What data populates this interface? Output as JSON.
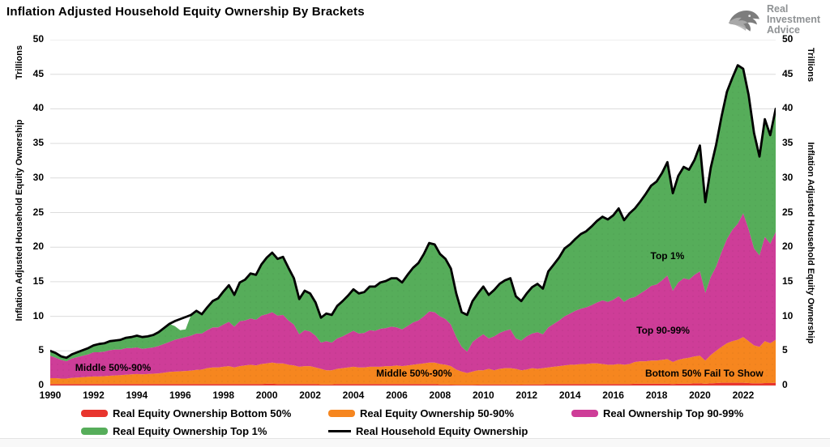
{
  "header": {
    "title": "Inflation Adjusted Household Equity Ownership By Brackets",
    "logo": {
      "lines": [
        "Real",
        "Investment",
        "Advice"
      ]
    }
  },
  "chart_data": {
    "type": "area",
    "stacked": true,
    "title": "Inflation Adjusted Household Equity Ownership By Brackets",
    "ylabel": "Inflation Adjusted Household Equity Ownership",
    "ylabel_units": "Trillions",
    "xlim": [
      1990,
      2023.5
    ],
    "ylim": [
      0,
      50
    ],
    "yticks": [
      0,
      5,
      10,
      15,
      20,
      25,
      30,
      35,
      40,
      45,
      50
    ],
    "xticks": [
      1990,
      1992,
      1994,
      1996,
      1998,
      2000,
      2002,
      2004,
      2006,
      2008,
      2010,
      2012,
      2014,
      2016,
      2018,
      2020,
      2022
    ],
    "grid": "horizontal",
    "legend_position": "bottom",
    "x_start": 1990,
    "x_step": 0.25,
    "series": [
      {
        "name": "Real Equity Ownership Bottom 50%",
        "type": "area",
        "color": "#E8352E",
        "values": [
          0.2,
          0.2,
          0.2,
          0.2,
          0.2,
          0.2,
          0.2,
          0.2,
          0.2,
          0.2,
          0.2,
          0.2,
          0.2,
          0.2,
          0.2,
          0.2,
          0.2,
          0.2,
          0.2,
          0.2,
          0.2,
          0.2,
          0.2,
          0.2,
          0.2,
          0.2,
          0.2,
          0.2,
          0.2,
          0.2,
          0.2,
          0.2,
          0.2,
          0.2,
          0.2,
          0.2,
          0.2,
          0.2,
          0.2,
          0.2,
          0.25,
          0.25,
          0.2,
          0.2,
          0.2,
          0.2,
          0.2,
          0.2,
          0.2,
          0.2,
          0.15,
          0.15,
          0.15,
          0.2,
          0.2,
          0.2,
          0.2,
          0.2,
          0.2,
          0.2,
          0.2,
          0.2,
          0.2,
          0.2,
          0.2,
          0.2,
          0.2,
          0.2,
          0.2,
          0.2,
          0.2,
          0.2,
          0.15,
          0.15,
          0.12,
          0.1,
          0.1,
          0.1,
          0.1,
          0.12,
          0.15,
          0.15,
          0.15,
          0.15,
          0.15,
          0.15,
          0.15,
          0.12,
          0.15,
          0.15,
          0.15,
          0.15,
          0.2,
          0.2,
          0.2,
          0.2,
          0.2,
          0.2,
          0.2,
          0.2,
          0.2,
          0.2,
          0.2,
          0.2,
          0.2,
          0.2,
          0.2,
          0.2,
          0.25,
          0.25,
          0.25,
          0.25,
          0.25,
          0.25,
          0.25,
          0.2,
          0.25,
          0.25,
          0.25,
          0.3,
          0.3,
          0.25,
          0.3,
          0.35,
          0.4,
          0.4,
          0.4,
          0.4,
          0.4,
          0.35,
          0.3,
          0.3,
          0.35,
          0.35,
          0.4
        ]
      },
      {
        "name": "Real Equity Ownership 50-90%",
        "type": "area",
        "color": "#F6861F",
        "values": [
          0.85,
          0.85,
          0.8,
          0.8,
          0.9,
          0.95,
          1.0,
          1.05,
          1.1,
          1.1,
          1.15,
          1.2,
          1.25,
          1.3,
          1.35,
          1.4,
          1.45,
          1.4,
          1.45,
          1.5,
          1.55,
          1.65,
          1.75,
          1.8,
          1.85,
          1.9,
          1.95,
          2.05,
          2.1,
          2.3,
          2.4,
          2.4,
          2.5,
          2.6,
          2.4,
          2.6,
          2.7,
          2.8,
          2.7,
          2.9,
          2.95,
          3.05,
          3.0,
          3.0,
          2.8,
          2.7,
          2.5,
          2.6,
          2.6,
          2.4,
          2.25,
          2.05,
          2.05,
          2.2,
          2.3,
          2.4,
          2.5,
          2.4,
          2.4,
          2.5,
          2.5,
          2.5,
          2.6,
          2.6,
          2.7,
          2.6,
          2.7,
          2.8,
          2.9,
          3.0,
          3.1,
          3.1,
          2.95,
          2.85,
          2.68,
          2.2,
          1.9,
          1.7,
          1.9,
          2.08,
          2.05,
          2.25,
          2.05,
          2.25,
          2.35,
          2.35,
          2.25,
          2.08,
          2.15,
          2.35,
          2.25,
          2.35,
          2.4,
          2.5,
          2.6,
          2.7,
          2.8,
          2.8,
          2.9,
          2.9,
          3.0,
          3.0,
          2.9,
          2.8,
          2.8,
          2.9,
          2.8,
          2.9,
          3.15,
          3.25,
          3.25,
          3.35,
          3.35,
          3.45,
          3.55,
          3.2,
          3.45,
          3.65,
          3.75,
          3.9,
          4.0,
          3.35,
          4.1,
          4.65,
          5.2,
          5.7,
          6.0,
          6.2,
          6.6,
          6.05,
          5.5,
          5.3,
          6.05,
          5.75,
          6.2
        ]
      },
      {
        "name": "Real Ownership Top 90-99%",
        "type": "area",
        "color": "#CE3D98",
        "values": [
          3.25,
          2.95,
          2.7,
          2.5,
          2.8,
          2.95,
          3.1,
          3.25,
          3.5,
          3.5,
          3.55,
          3.7,
          3.75,
          3.7,
          3.85,
          3.8,
          3.85,
          3.7,
          3.75,
          3.8,
          3.95,
          4.15,
          4.35,
          4.6,
          4.75,
          4.9,
          5.05,
          5.25,
          5.2,
          5.5,
          5.8,
          5.8,
          6.1,
          6.4,
          5.9,
          6.5,
          6.5,
          6.7,
          6.6,
          7.0,
          7.1,
          7.3,
          6.9,
          7.0,
          6.4,
          5.9,
          4.7,
          5.2,
          5.0,
          4.6,
          3.8,
          4.2,
          4.0,
          4.4,
          4.6,
          4.9,
          5.2,
          4.9,
          5.0,
          5.3,
          5.2,
          5.5,
          5.5,
          5.7,
          5.5,
          5.3,
          5.7,
          6.1,
          6.3,
          6.8,
          7.4,
          7.3,
          6.9,
          6.6,
          6.0,
          4.7,
          3.6,
          3.1,
          4.3,
          4.7,
          5.2,
          4.4,
          4.9,
          5.2,
          5.4,
          5.6,
          4.4,
          4.3,
          4.8,
          5.0,
          5.3,
          4.9,
          5.8,
          6.2,
          6.6,
          7.1,
          7.4,
          7.8,
          8.0,
          8.2,
          8.4,
          8.8,
          9.2,
          9.1,
          9.4,
          9.8,
          9.1,
          9.5,
          9.4,
          9.8,
          10.3,
          10.8,
          11.0,
          11.5,
          12.1,
          10.3,
          11.2,
          11.6,
          11.3,
          11.8,
          12.2,
          9.8,
          11.3,
          12.2,
          13.7,
          15.1,
          16.1,
          16.8,
          17.9,
          16.2,
          14.0,
          13.2,
          15.1,
          14.4,
          15.6
        ]
      },
      {
        "name": "Real Equity Ownership Top 1%",
        "type": "area",
        "color": "#56AD5A",
        "values": [
          0.7,
          0.7,
          0.5,
          0.5,
          0.6,
          0.7,
          0.8,
          0.9,
          1.0,
          1.2,
          1.2,
          1.3,
          1.3,
          1.4,
          1.5,
          1.6,
          1.7,
          1.7,
          1.7,
          1.8,
          2.0,
          2.3,
          2.6,
          2.0,
          1.2,
          1.1,
          3.0,
          3.3,
          2.8,
          3.3,
          3.8,
          4.2,
          4.8,
          5.3,
          4.6,
          5.6,
          5.9,
          6.5,
          6.5,
          7.4,
          8.2,
          8.6,
          8.2,
          8.4,
          7.6,
          6.7,
          5.1,
          5.7,
          5.5,
          4.8,
          3.6,
          4.0,
          4.0,
          4.7,
          5.1,
          5.5,
          6.0,
          5.8,
          5.9,
          6.3,
          6.4,
          6.7,
          6.8,
          7.0,
          7.1,
          6.8,
          7.4,
          7.9,
          8.3,
          9.0,
          9.9,
          9.8,
          9.0,
          8.7,
          8.1,
          6.3,
          5.0,
          5.3,
          5.9,
          6.4,
          6.9,
          6.3,
          6.7,
          7.1,
          7.3,
          7.4,
          6.1,
          5.7,
          6.2,
          6.7,
          7.0,
          6.6,
          8.1,
          8.6,
          9.1,
          9.8,
          10.0,
          10.4,
          10.8,
          11.0,
          11.4,
          11.8,
          12.1,
          11.9,
          12.2,
          12.7,
          11.8,
          12.3,
          12.8,
          13.3,
          13.9,
          14.5,
          14.9,
          15.5,
          16.4,
          14.1,
          15.4,
          16.1,
          15.9,
          16.6,
          18.2,
          13.1,
          15.8,
          17.6,
          19.6,
          21.3,
          22.0,
          22.9,
          20.9,
          19.4,
          16.7,
          14.3,
          17.0,
          15.7,
          17.8
        ]
      },
      {
        "name": "Real Household Equity Ownership",
        "type": "line",
        "color": "#000000",
        "values": [
          5.0,
          4.7,
          4.2,
          4.0,
          4.5,
          4.8,
          5.1,
          5.4,
          5.8,
          6.0,
          6.1,
          6.4,
          6.5,
          6.6,
          6.9,
          7.0,
          7.2,
          7.0,
          7.1,
          7.3,
          7.7,
          8.3,
          8.9,
          9.3,
          9.6,
          9.9,
          10.2,
          10.8,
          10.3,
          11.3,
          12.2,
          12.6,
          13.6,
          14.5,
          13.1,
          14.9,
          15.3,
          16.2,
          16.0,
          17.5,
          18.5,
          19.2,
          18.3,
          18.6,
          17.0,
          15.5,
          12.5,
          13.7,
          13.3,
          12.0,
          9.8,
          10.4,
          10.2,
          11.5,
          12.2,
          13.0,
          13.9,
          13.3,
          13.5,
          14.3,
          14.3,
          14.9,
          15.1,
          15.5,
          15.5,
          14.9,
          16.0,
          17.0,
          17.7,
          19.0,
          20.6,
          20.4,
          19.0,
          18.3,
          16.9,
          13.3,
          10.6,
          10.2,
          12.2,
          13.3,
          14.3,
          13.1,
          13.8,
          14.7,
          15.2,
          15.5,
          12.9,
          12.2,
          13.3,
          14.2,
          14.7,
          14.0,
          16.5,
          17.5,
          18.5,
          19.8,
          20.4,
          21.2,
          21.9,
          22.3,
          23.0,
          23.8,
          24.4,
          24.0,
          24.6,
          25.6,
          23.9,
          24.9,
          25.6,
          26.6,
          27.7,
          28.9,
          29.5,
          30.7,
          32.3,
          27.8,
          30.3,
          31.6,
          31.2,
          32.6,
          34.7,
          26.5,
          31.5,
          34.8,
          38.9,
          42.5,
          44.5,
          46.3,
          45.8,
          42.0,
          36.5,
          33.1,
          38.5,
          36.2,
          40.0
        ]
      }
    ],
    "annotations": [
      {
        "text": "Middle 50%-90%",
        "x": 1992.9,
        "y": 2.6
      },
      {
        "text": "Middle 50%-90%",
        "x": 2006.8,
        "y": 1.75
      },
      {
        "text": "Top 90-99%",
        "x": 2018.3,
        "y": 8.0
      },
      {
        "text": "Top 1%",
        "x": 2018.5,
        "y": 18.7
      },
      {
        "text": "Bottom 50% Fail To Show",
        "x": 2020.2,
        "y": 1.7
      }
    ],
    "legend": [
      {
        "label": "Real Equity Ownership Bottom 50%",
        "color": "#E8352E",
        "marker": "area"
      },
      {
        "label": "Real Equity Ownership 50-90%",
        "color": "#F6861F",
        "marker": "area"
      },
      {
        "label": "Real Ownership Top 90-99%",
        "color": "#CE3D98",
        "marker": "area"
      },
      {
        "label": "Real Equity Ownership Top 1%",
        "color": "#56AD5A",
        "marker": "area"
      },
      {
        "label": "Real Household Equity Ownership",
        "color": "#000000",
        "marker": "line"
      }
    ]
  }
}
